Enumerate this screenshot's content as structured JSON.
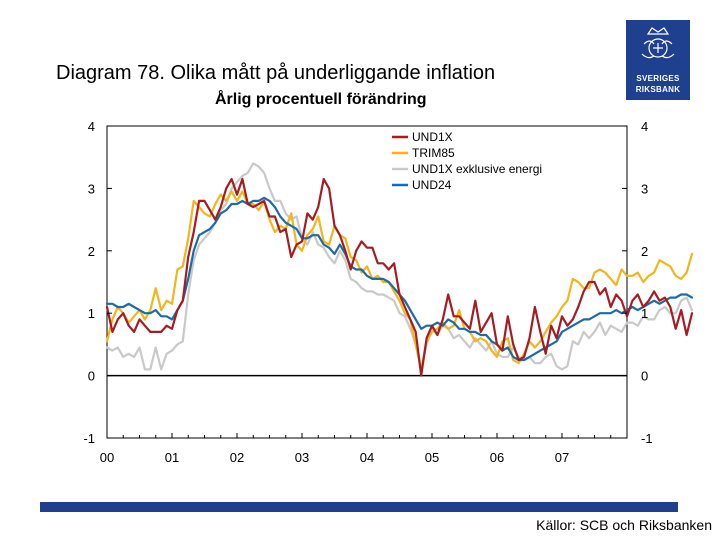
{
  "header": {
    "title": "Diagram 78. Olika mått på underliggande inflation",
    "subtitle": "Årlig procentuell förändring"
  },
  "logo": {
    "line1": "SVERIGES",
    "line2": "RIKSBANK"
  },
  "footer": {
    "source": "Källor: SCB och Riksbanken"
  },
  "colors": {
    "brand": "#1f3f8f"
  },
  "chart_data": {
    "type": "line",
    "title": "Diagram 78. Olika mått på underliggande inflation",
    "subtitle": "Årlig procentuell förändring",
    "x_start": 2000.0,
    "x_step": 0.0833333,
    "xlim": [
      2000,
      2008
    ],
    "ylim": [
      -1,
      4
    ],
    "yticks": [
      "-1",
      "0",
      "1",
      "2",
      "3",
      "4"
    ],
    "yticks_right": [
      "-1",
      "0",
      "1",
      "2",
      "3",
      "4"
    ],
    "xticks": [
      {
        "label": "00",
        "x": 2000
      },
      {
        "label": "01",
        "x": 2001
      },
      {
        "label": "02",
        "x": 2002
      },
      {
        "label": "03",
        "x": 2003
      },
      {
        "label": "04",
        "x": 2004
      },
      {
        "label": "05",
        "x": 2005
      },
      {
        "label": "06",
        "x": 2006
      },
      {
        "label": "07",
        "x": 2007
      }
    ],
    "legend_position": "top-center",
    "series": [
      {
        "name": "UND1X",
        "color": "#a51d22",
        "values": [
          1.1,
          0.7,
          0.9,
          1.0,
          0.8,
          0.7,
          0.9,
          0.8,
          0.7,
          0.7,
          0.7,
          0.8,
          0.75,
          1.05,
          1.2,
          1.9,
          2.3,
          2.8,
          2.8,
          2.65,
          2.5,
          2.7,
          3.0,
          3.15,
          2.9,
          3.15,
          2.75,
          2.7,
          2.75,
          2.8,
          2.55,
          2.55,
          2.3,
          2.35,
          1.9,
          2.1,
          2.15,
          2.6,
          2.5,
          2.7,
          3.15,
          3.0,
          2.4,
          2.25,
          2.0,
          1.7,
          2.0,
          2.15,
          2.05,
          2.05,
          1.8,
          1.8,
          1.7,
          1.8,
          1.3,
          1.1,
          0.9,
          0.7,
          0.0,
          0.6,
          0.8,
          0.65,
          0.9,
          1.3,
          0.95,
          0.95,
          0.85,
          0.75,
          1.2,
          0.7,
          0.85,
          1.0,
          0.5,
          0.4,
          0.95,
          0.5,
          0.25,
          0.3,
          0.6,
          1.1,
          0.7,
          0.35,
          0.8,
          0.6,
          0.95,
          0.8,
          0.9,
          1.1,
          1.35,
          1.5,
          1.5,
          1.3,
          1.4,
          1.1,
          1.3,
          1.2,
          0.95,
          1.2,
          1.3,
          1.1,
          1.2,
          1.35,
          1.2,
          1.25,
          1.1,
          0.75,
          1.05,
          0.65,
          1.0
        ]
      },
      {
        "name": "TRIM85",
        "color": "#f2b51c",
        "values": [
          0.55,
          0.9,
          1.1,
          1.0,
          0.85,
          0.95,
          1.05,
          0.9,
          1.05,
          1.4,
          1.05,
          1.2,
          1.15,
          1.7,
          1.75,
          2.2,
          2.8,
          2.7,
          2.6,
          2.55,
          2.75,
          2.9,
          2.8,
          2.95,
          2.8,
          2.95,
          2.75,
          2.75,
          2.65,
          2.8,
          2.5,
          2.3,
          2.4,
          2.35,
          2.6,
          2.1,
          2.0,
          2.25,
          2.35,
          2.55,
          2.15,
          2.1,
          2.4,
          2.25,
          2.2,
          1.9,
          1.85,
          1.65,
          1.75,
          1.55,
          1.6,
          1.5,
          1.5,
          1.35,
          1.2,
          1.0,
          0.9,
          0.5,
          0.1,
          0.55,
          0.7,
          0.75,
          0.85,
          0.75,
          0.8,
          1.05,
          0.75,
          0.7,
          0.55,
          0.6,
          0.55,
          0.4,
          0.3,
          0.55,
          0.6,
          0.25,
          0.2,
          0.35,
          0.55,
          0.45,
          0.55,
          0.7,
          0.85,
          0.95,
          1.1,
          1.2,
          1.55,
          1.5,
          1.4,
          1.4,
          1.65,
          1.7,
          1.65,
          1.55,
          1.45,
          1.7,
          1.6,
          1.6,
          1.65,
          1.5,
          1.6,
          1.65,
          1.85,
          1.8,
          1.75,
          1.6,
          1.55,
          1.65,
          1.95
        ]
      },
      {
        "name": "UND1X exklusive energi",
        "color": "#c9c9c9",
        "values": [
          0.45,
          0.4,
          0.45,
          0.3,
          0.35,
          0.3,
          0.45,
          0.1,
          0.1,
          0.45,
          0.1,
          0.35,
          0.4,
          0.5,
          0.55,
          1.3,
          1.85,
          2.1,
          2.2,
          2.3,
          2.45,
          2.65,
          2.75,
          3.0,
          3.1,
          3.2,
          3.25,
          3.4,
          3.35,
          3.25,
          3.0,
          2.8,
          2.8,
          2.6,
          2.5,
          2.55,
          2.2,
          2.1,
          2.3,
          2.1,
          2.05,
          1.9,
          1.8,
          2.0,
          1.85,
          1.55,
          1.5,
          1.4,
          1.35,
          1.35,
          1.3,
          1.3,
          1.25,
          1.2,
          1.0,
          0.95,
          0.75,
          0.5,
          0.1,
          0.5,
          0.75,
          0.65,
          0.8,
          0.75,
          0.6,
          0.65,
          0.55,
          0.45,
          0.6,
          0.5,
          0.4,
          0.55,
          0.35,
          0.3,
          0.3,
          0.45,
          0.3,
          0.25,
          0.3,
          0.2,
          0.2,
          0.3,
          0.35,
          0.15,
          0.1,
          0.15,
          0.55,
          0.5,
          0.7,
          0.6,
          0.7,
          0.85,
          0.65,
          0.8,
          0.75,
          0.7,
          0.85,
          0.85,
          0.8,
          0.95,
          0.9,
          0.9,
          1.05,
          1.1,
          1.0,
          1.0,
          1.2,
          1.25,
          1.05
        ]
      },
      {
        "name": "UND24",
        "color": "#1c6aa8",
        "values": [
          1.15,
          1.15,
          1.1,
          1.1,
          1.15,
          1.1,
          1.05,
          1.0,
          1.0,
          1.05,
          0.95,
          0.95,
          0.9,
          1.05,
          1.2,
          1.55,
          2.0,
          2.25,
          2.3,
          2.35,
          2.45,
          2.6,
          2.65,
          2.75,
          2.75,
          2.8,
          2.75,
          2.8,
          2.8,
          2.85,
          2.8,
          2.7,
          2.55,
          2.45,
          2.4,
          2.35,
          2.2,
          2.2,
          2.25,
          2.25,
          2.1,
          2.05,
          1.95,
          2.1,
          1.95,
          1.75,
          1.7,
          1.7,
          1.6,
          1.55,
          1.55,
          1.55,
          1.5,
          1.4,
          1.3,
          1.2,
          1.05,
          0.9,
          0.75,
          0.8,
          0.8,
          0.85,
          0.8,
          0.9,
          0.85,
          0.75,
          0.75,
          0.7,
          0.7,
          0.65,
          0.65,
          0.55,
          0.5,
          0.4,
          0.45,
          0.3,
          0.25,
          0.25,
          0.3,
          0.35,
          0.4,
          0.45,
          0.5,
          0.55,
          0.7,
          0.75,
          0.8,
          0.85,
          0.9,
          0.9,
          0.95,
          1.0,
          1.0,
          1.0,
          1.05,
          1.0,
          1.05,
          1.1,
          1.05,
          1.1,
          1.15,
          1.2,
          1.15,
          1.2,
          1.25,
          1.25,
          1.3,
          1.3,
          1.25
        ]
      }
    ]
  }
}
